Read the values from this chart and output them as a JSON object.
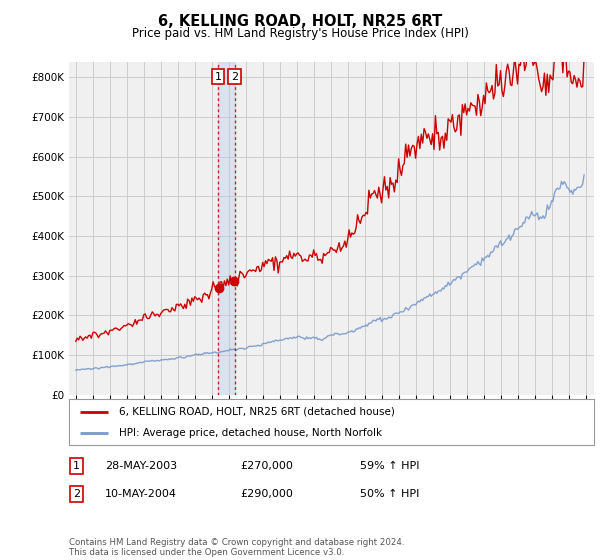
{
  "title": "6, KELLING ROAD, HOLT, NR25 6RT",
  "subtitle": "Price paid vs. HM Land Registry's House Price Index (HPI)",
  "hpi_color": "#7799cc",
  "price_color": "#cc0000",
  "vline_color": "#cc0000",
  "background_color": "#ffffff",
  "plot_bg_color": "#f0f0f0",
  "grid_color": "#cccccc",
  "ylim": [
    0,
    840000
  ],
  "yticks": [
    0,
    100000,
    200000,
    300000,
    400000,
    500000,
    600000,
    700000,
    800000
  ],
  "transactions": [
    {
      "label": "1",
      "date_num": 2003.38,
      "price": 270000,
      "date_str": "28-MAY-2003",
      "pct": "59%"
    },
    {
      "label": "2",
      "date_num": 2004.36,
      "price": 290000,
      "date_str": "10-MAY-2004",
      "pct": "50%"
    }
  ],
  "legend_entries": [
    "6, KELLING ROAD, HOLT, NR25 6RT (detached house)",
    "HPI: Average price, detached house, North Norfolk"
  ],
  "footer": "Contains HM Land Registry data © Crown copyright and database right 2024.\nThis data is licensed under the Open Government Licence v3.0.",
  "table_rows": [
    [
      "1",
      "28-MAY-2003",
      "£270,000",
      "59% ↑ HPI"
    ],
    [
      "2",
      "10-MAY-2004",
      "£290,000",
      "50% ↑ HPI"
    ]
  ]
}
